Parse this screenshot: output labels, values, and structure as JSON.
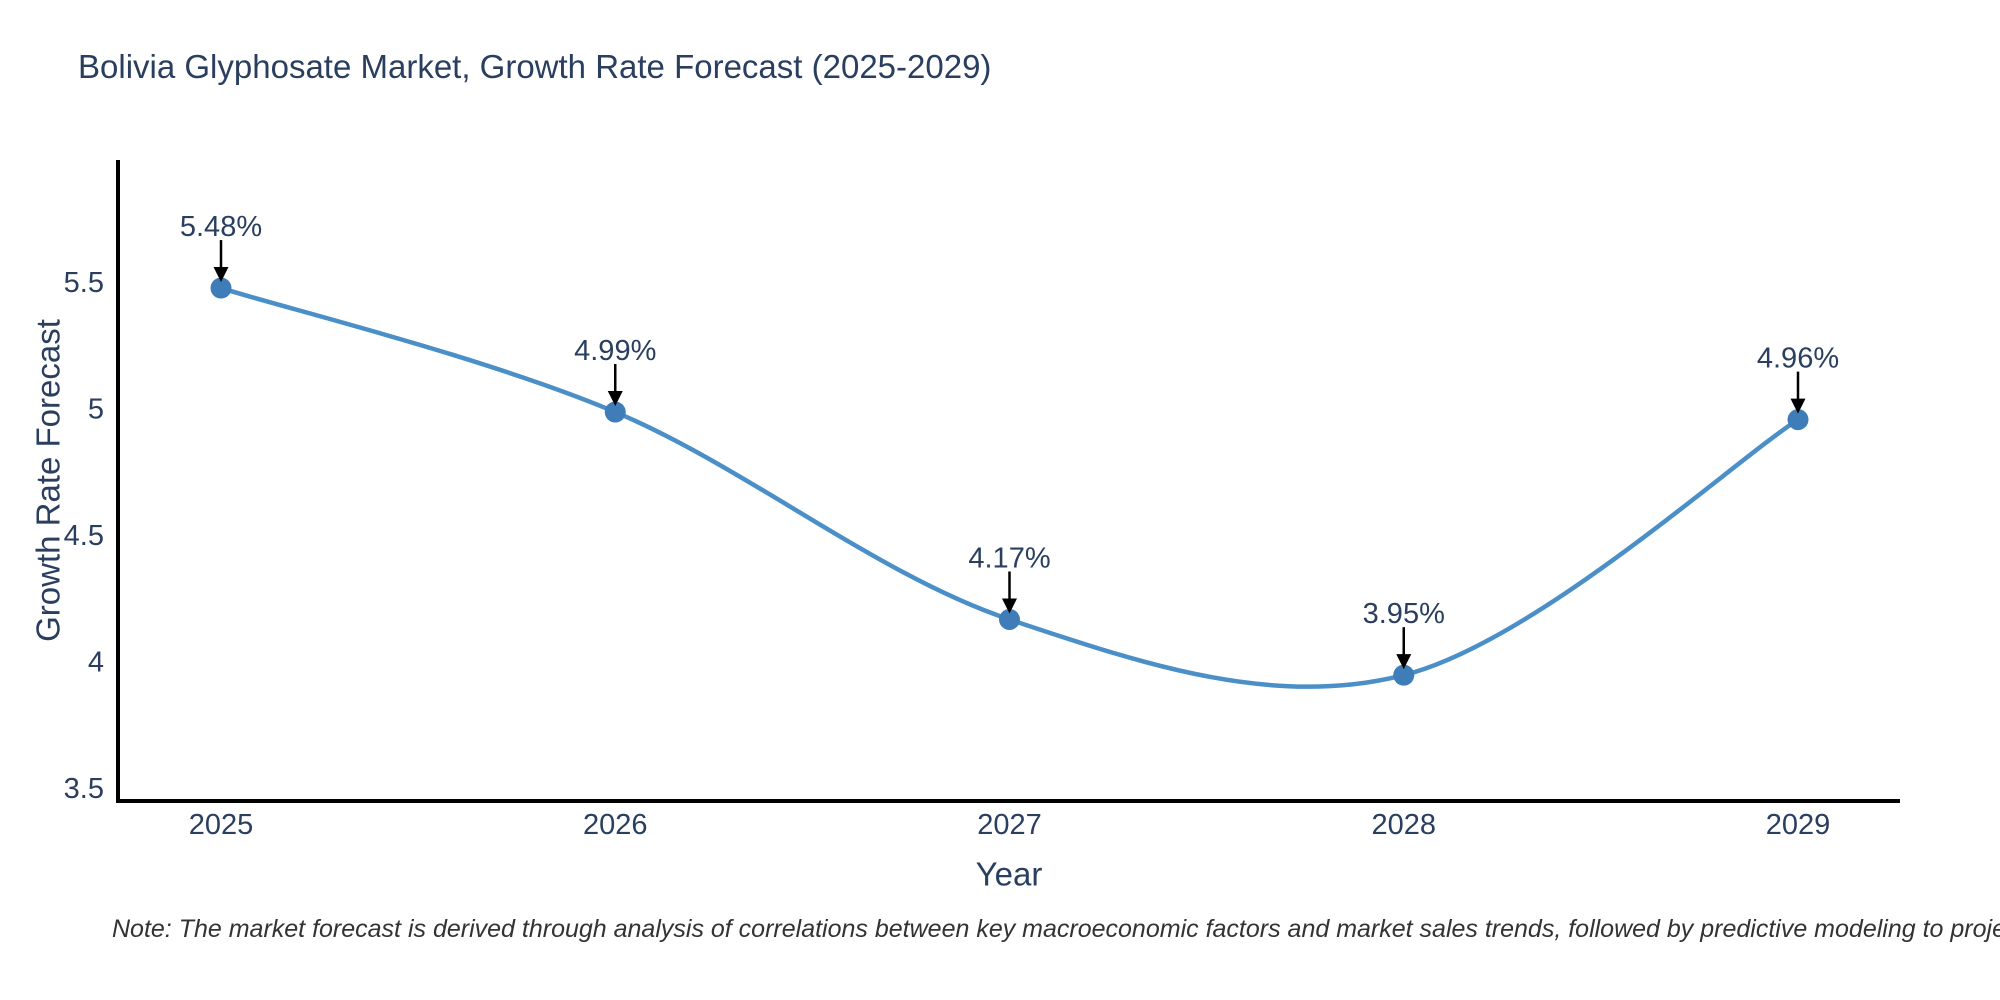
{
  "chart_data": {
    "type": "line",
    "title": "Bolivia Glyphosate Market, Growth Rate Forecast (2025-2029)",
    "categories": [
      "2025",
      "2026",
      "2027",
      "2028",
      "2029"
    ],
    "values": [
      5.48,
      4.99,
      4.17,
      3.95,
      4.96
    ],
    "point_labels": [
      "5.48%",
      "4.99%",
      "4.17%",
      "3.95%",
      "4.96%"
    ],
    "series_name": "Growth Rate Forecast",
    "xlabel": "Year",
    "ylabel": "Growth Rate Forecast",
    "ytick_values": [
      5.5,
      5.0,
      4.5,
      4.0,
      3.5
    ],
    "ytick_labels": [
      "5.5",
      "5",
      "4.5",
      "4",
      "3.5"
    ],
    "ylim": [
      3.43,
      5.98
    ],
    "grid": false,
    "legend_position": "none",
    "line_shape": "spline",
    "colors": {
      "line": "#4a8fc7",
      "marker": "#3f7db8",
      "axis": "#000000",
      "text": "#2a3f5f",
      "arrow": "#000000",
      "background": "#ffffff"
    }
  },
  "note": {
    "text": "Note: The market forecast is derived through analysis of correlations between key macroeconomic factors and market sales trends, followed by predictive modeling to project future sales."
  }
}
